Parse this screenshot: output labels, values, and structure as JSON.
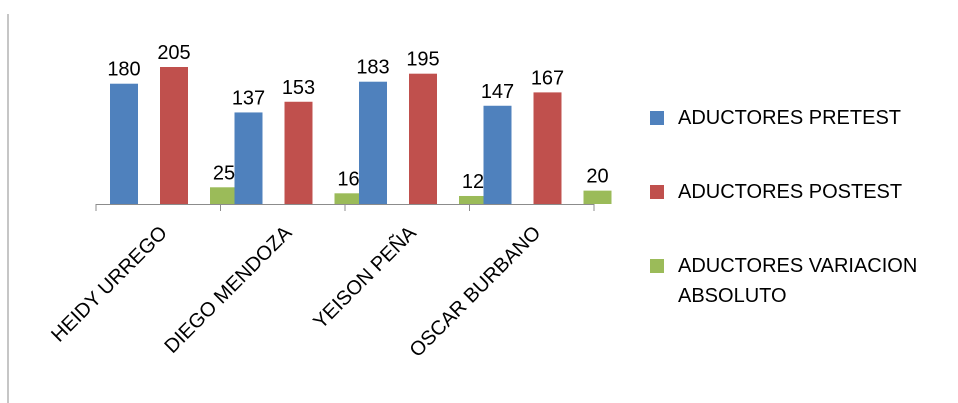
{
  "chart_data": {
    "type": "bar",
    "categories": [
      "HEIDY URREGO",
      "DIEGO MENDOZA",
      "YEISON PEÑA",
      "OSCAR BURBANO"
    ],
    "series": [
      {
        "name": "ADUCTORES  PRETEST",
        "values": [
          180,
          137,
          183,
          147
        ],
        "color": "#4F81BD"
      },
      {
        "name": "ADUCTORES  POSTEST",
        "values": [
          205,
          153,
          195,
          167
        ],
        "color": "#C0504D"
      },
      {
        "name": "ADUCTORES  VARIACION ABSOLUTO",
        "values": [
          25,
          16,
          12,
          20
        ],
        "color": "#9BBB59"
      }
    ],
    "ylim": [
      0,
      205
    ],
    "grid": false,
    "legend_position": "right",
    "data_labels": true
  }
}
